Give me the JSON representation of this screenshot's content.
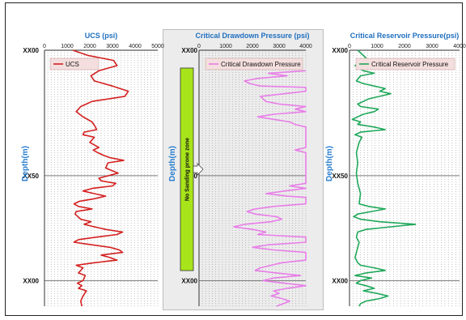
{
  "chart_data": [
    {
      "type": "line",
      "title": "UCS (psi)",
      "xlim": [
        0,
        5000
      ],
      "x_ticks": [
        "0",
        "1000",
        "2000",
        "3000",
        "4000",
        "5000"
      ],
      "ylabel": "Depth(m)",
      "depth_labels": [
        "XX00",
        "XX50",
        "XX00"
      ],
      "grid": true,
      "legend_position": "top-left",
      "series": [
        {
          "name": "UCS",
          "color": "#d42020",
          "points": [
            [
              1250,
              0
            ],
            [
              1900,
              2
            ],
            [
              3050,
              4
            ],
            [
              3200,
              6
            ],
            [
              2400,
              8
            ],
            [
              2050,
              10
            ],
            [
              2200,
              12
            ],
            [
              3000,
              14
            ],
            [
              3700,
              16
            ],
            [
              3550,
              18
            ],
            [
              2100,
              20
            ],
            [
              1600,
              22
            ],
            [
              1500,
              23
            ],
            [
              1400,
              24
            ],
            [
              1700,
              26
            ],
            [
              2100,
              28
            ],
            [
              2250,
              30
            ],
            [
              2300,
              31
            ],
            [
              1750,
              32
            ],
            [
              1700,
              33
            ],
            [
              2200,
              34
            ],
            [
              2000,
              36
            ],
            [
              2400,
              38
            ],
            [
              2150,
              39
            ],
            [
              2350,
              40
            ],
            [
              2600,
              41
            ],
            [
              2900,
              42
            ],
            [
              3500,
              43
            ],
            [
              2800,
              44
            ],
            [
              2700,
              46
            ],
            [
              3250,
              48
            ],
            [
              2400,
              50
            ],
            [
              2500,
              51
            ],
            [
              3150,
              52
            ],
            [
              3000,
              53
            ],
            [
              2100,
              54
            ],
            [
              1700,
              55
            ],
            [
              2200,
              56
            ],
            [
              2700,
              57
            ],
            [
              2200,
              58
            ],
            [
              1550,
              59
            ],
            [
              1300,
              60
            ],
            [
              1500,
              61
            ],
            [
              2100,
              62
            ],
            [
              1400,
              63
            ],
            [
              1350,
              64
            ],
            [
              1600,
              66
            ],
            [
              2050,
              67
            ],
            [
              1750,
              68
            ],
            [
              2200,
              69
            ],
            [
              2700,
              70
            ],
            [
              3450,
              71
            ],
            [
              3200,
              72
            ],
            [
              2300,
              73
            ],
            [
              1500,
              74
            ],
            [
              1300,
              75
            ],
            [
              2100,
              76
            ],
            [
              2900,
              77
            ],
            [
              3300,
              78
            ],
            [
              3450,
              79
            ],
            [
              2500,
              80
            ],
            [
              2900,
              81
            ],
            [
              3200,
              82
            ],
            [
              2200,
              83
            ],
            [
              1400,
              84
            ],
            [
              1700,
              85
            ],
            [
              1500,
              87
            ],
            [
              1800,
              88
            ],
            [
              1700,
              90
            ],
            [
              1450,
              91
            ],
            [
              1650,
              92
            ],
            [
              1500,
              93
            ],
            [
              1850,
              94
            ],
            [
              1700,
              96
            ],
            [
              1600,
              98
            ],
            [
              1650,
              100
            ]
          ]
        }
      ]
    },
    {
      "type": "line",
      "title": "Critical Drawdown Pressure (psi)",
      "xlim": [
        0,
        4000
      ],
      "x_ticks": [
        "0",
        "1000",
        "2000",
        "3000",
        "4000"
      ],
      "ylabel": "Depth(m)",
      "depth_labels": [
        "XX00",
        "XX50",
        "XX00"
      ],
      "grid": true,
      "legend_position": "top",
      "annotation": "No Sanding prone zone",
      "series": [
        {
          "name": "Critical Drawdown Pressure",
          "color": "#e87de8",
          "points": [
            [
              4000,
              8
            ],
            [
              2600,
              9
            ],
            [
              3300,
              10
            ],
            [
              2200,
              11
            ],
            [
              1700,
              12
            ],
            [
              1900,
              13
            ],
            [
              2300,
              14
            ],
            [
              4000,
              14.5
            ],
            [
              4000,
              16
            ],
            [
              3200,
              17
            ],
            [
              2300,
              18
            ],
            [
              2500,
              20
            ],
            [
              3000,
              21
            ],
            [
              4000,
              22
            ],
            [
              3600,
              23
            ],
            [
              4000,
              24
            ],
            [
              2800,
              25
            ],
            [
              2200,
              26
            ],
            [
              2800,
              27
            ],
            [
              3400,
              28
            ],
            [
              3600,
              29
            ],
            [
              4000,
              30
            ],
            [
              4000,
              36
            ],
            [
              4000,
              38
            ],
            [
              3600,
              39
            ],
            [
              4000,
              40
            ],
            [
              4000,
              46
            ],
            [
              4000,
              52
            ],
            [
              3400,
              53
            ],
            [
              4000,
              54
            ],
            [
              3200,
              55
            ],
            [
              2500,
              56
            ],
            [
              3300,
              57
            ],
            [
              4000,
              57.5
            ],
            [
              4000,
              60
            ],
            [
              2800,
              61
            ],
            [
              2100,
              62
            ],
            [
              1800,
              63
            ],
            [
              2100,
              64
            ],
            [
              2900,
              65
            ],
            [
              3100,
              66
            ],
            [
              2700,
              67
            ],
            [
              1700,
              68
            ],
            [
              1300,
              69
            ],
            [
              2000,
              70
            ],
            [
              2500,
              71
            ],
            [
              2200,
              72
            ],
            [
              4000,
              73
            ],
            [
              4000,
              75
            ],
            [
              2600,
              76
            ],
            [
              2000,
              77
            ],
            [
              2800,
              78
            ],
            [
              4000,
              79
            ],
            [
              4000,
              82
            ],
            [
              3100,
              83
            ],
            [
              2300,
              85
            ],
            [
              2100,
              86
            ],
            [
              2900,
              87
            ],
            [
              3800,
              88
            ],
            [
              2800,
              89
            ],
            [
              2400,
              90
            ],
            [
              3200,
              91
            ],
            [
              4000,
              92
            ],
            [
              3300,
              93
            ],
            [
              2800,
              94
            ],
            [
              3000,
              95
            ],
            [
              2700,
              96
            ],
            [
              3100,
              97
            ],
            [
              3400,
              98
            ],
            [
              2900,
              100
            ]
          ]
        }
      ]
    },
    {
      "type": "line",
      "title": "Critical Reservoir Pressure(psi)",
      "xlim": [
        0,
        4000
      ],
      "x_ticks": [
        "0",
        "1000",
        "2000",
        "3000",
        "4000"
      ],
      "ylabel": "Depth(m)",
      "depth_labels": [
        "XX00",
        "XX50",
        "XX00"
      ],
      "grid": true,
      "legend_position": "top",
      "series": [
        {
          "name": "Critical Reservoir Pressure",
          "color": "#1fa85a",
          "points": [
            [
              300,
              0
            ],
            [
              600,
              3
            ],
            [
              200,
              6
            ],
            [
              500,
              8
            ],
            [
              900,
              9
            ],
            [
              400,
              10
            ],
            [
              250,
              12
            ],
            [
              500,
              13
            ],
            [
              900,
              14
            ],
            [
              1300,
              15
            ],
            [
              1100,
              16
            ],
            [
              1500,
              17
            ],
            [
              1100,
              18
            ],
            [
              700,
              19
            ],
            [
              500,
              20
            ],
            [
              300,
              21
            ],
            [
              400,
              22
            ],
            [
              1050,
              23
            ],
            [
              900,
              24
            ],
            [
              500,
              25
            ],
            [
              300,
              26
            ],
            [
              100,
              27
            ],
            [
              400,
              28
            ],
            [
              300,
              29
            ],
            [
              900,
              30
            ],
            [
              1300,
              31
            ],
            [
              400,
              32
            ],
            [
              200,
              33
            ],
            [
              450,
              34
            ],
            [
              350,
              36
            ],
            [
              250,
              40
            ],
            [
              300,
              44
            ],
            [
              250,
              48
            ],
            [
              300,
              52
            ],
            [
              400,
              56
            ],
            [
              350,
              60
            ],
            [
              700,
              61
            ],
            [
              1300,
              62
            ],
            [
              800,
              63
            ],
            [
              300,
              64
            ],
            [
              150,
              65
            ],
            [
              400,
              66
            ],
            [
              1100,
              67
            ],
            [
              2400,
              68
            ],
            [
              1500,
              69
            ],
            [
              600,
              70
            ],
            [
              300,
              71
            ],
            [
              250,
              73
            ],
            [
              350,
              75
            ],
            [
              300,
              77
            ],
            [
              250,
              79
            ],
            [
              200,
              81
            ],
            [
              300,
              83
            ],
            [
              400,
              84
            ],
            [
              900,
              85
            ],
            [
              1300,
              86
            ],
            [
              600,
              87
            ],
            [
              200,
              88
            ],
            [
              800,
              89
            ],
            [
              400,
              90
            ],
            [
              250,
              91
            ],
            [
              600,
              92
            ],
            [
              900,
              93
            ],
            [
              500,
              94
            ],
            [
              1000,
              95
            ],
            [
              1400,
              96
            ],
            [
              1100,
              97
            ],
            [
              600,
              98
            ],
            [
              400,
              99
            ],
            [
              350,
              100
            ]
          ]
        }
      ]
    }
  ]
}
